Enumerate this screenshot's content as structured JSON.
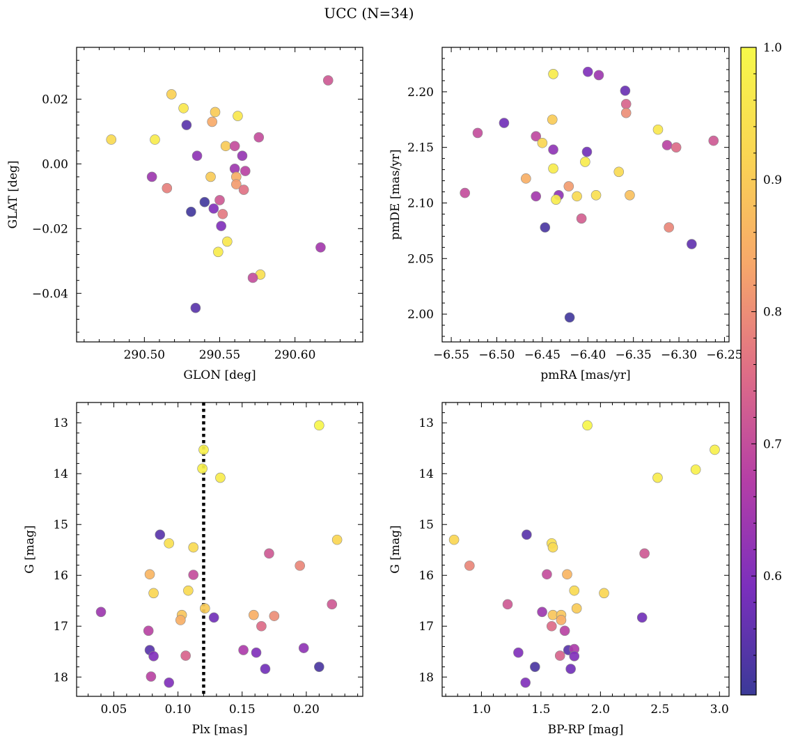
{
  "figure_title": "UCC (N=34)",
  "colorbar": {
    "min": 0.51,
    "max": 1.0,
    "ticks": [
      0.6,
      0.7,
      0.8,
      0.9,
      1.0
    ],
    "tick_labels": [
      "0.6",
      "0.7",
      "0.8",
      "0.9",
      "1.0"
    ],
    "colormap": "plasma",
    "stops": [
      "#3b3a98",
      "#7b2fbd",
      "#b53fa6",
      "#df6e86",
      "#f7a86a",
      "#fad553",
      "#f6f94a"
    ]
  },
  "marker_edge_color": "#888888",
  "chart_data": [
    {
      "type": "scatter",
      "xlabel": "GLON [deg]",
      "ylabel": "GLAT [deg]",
      "xlim": [
        290.455,
        290.645
      ],
      "ylim": [
        -0.055,
        0.036
      ],
      "xticks": [
        290.5,
        290.55,
        290.6
      ],
      "xtick_labels": [
        "290.50",
        "290.55",
        "290.60"
      ],
      "yticks": [
        -0.04,
        -0.02,
        0.0,
        0.02
      ],
      "ytick_labels": [
        "−0.04",
        "−0.02",
        "0.00",
        "0.02"
      ],
      "invert_y": false,
      "points": [
        [
          290.478,
          0.0075,
          0.93
        ],
        [
          290.518,
          0.0215,
          0.91
        ],
        [
          290.526,
          0.0172,
          0.96
        ],
        [
          290.528,
          0.012,
          0.55
        ],
        [
          290.547,
          0.016,
          0.9
        ],
        [
          290.562,
          0.0148,
          0.96
        ],
        [
          290.622,
          0.0258,
          0.72
        ],
        [
          290.507,
          0.0075,
          0.97
        ],
        [
          290.545,
          0.013,
          0.84
        ],
        [
          290.554,
          0.0055,
          0.9
        ],
        [
          290.56,
          0.0055,
          0.7
        ],
        [
          290.576,
          0.0082,
          0.7
        ],
        [
          290.535,
          0.0025,
          0.62
        ],
        [
          290.565,
          0.0025,
          0.63
        ],
        [
          290.505,
          -0.004,
          0.64
        ],
        [
          290.544,
          -0.004,
          0.9
        ],
        [
          290.56,
          -0.0015,
          0.64
        ],
        [
          290.567,
          -0.0022,
          0.68
        ],
        [
          290.561,
          -0.004,
          0.85
        ],
        [
          290.515,
          -0.0075,
          0.78
        ],
        [
          290.561,
          -0.0063,
          0.82
        ],
        [
          290.566,
          -0.008,
          0.76
        ],
        [
          290.54,
          -0.0118,
          0.52
        ],
        [
          290.55,
          -0.0112,
          0.72
        ],
        [
          290.531,
          -0.0148,
          0.52
        ],
        [
          290.546,
          -0.0138,
          0.6
        ],
        [
          290.552,
          -0.0155,
          0.77
        ],
        [
          290.551,
          -0.0192,
          0.6
        ],
        [
          290.555,
          -0.024,
          0.96
        ],
        [
          290.549,
          -0.0272,
          0.97
        ],
        [
          290.617,
          -0.0258,
          0.65
        ],
        [
          290.577,
          -0.0342,
          0.94
        ],
        [
          290.572,
          -0.0352,
          0.7
        ],
        [
          290.534,
          -0.0445,
          0.55
        ]
      ]
    },
    {
      "type": "scatter",
      "xlabel": "pmRA [mas/yr]",
      "ylabel": "pmDE [mas/yr]",
      "xlim": [
        -6.56,
        -6.245
      ],
      "ylim": [
        1.975,
        2.24
      ],
      "xticks": [
        -6.55,
        -6.5,
        -6.45,
        -6.4,
        -6.35,
        -6.3,
        -6.25
      ],
      "xtick_labels": [
        "−6.55",
        "−6.50",
        "−6.45",
        "−6.40",
        "−6.35",
        "−6.30",
        "−6.25"
      ],
      "yticks": [
        2.0,
        2.05,
        2.1,
        2.15,
        2.2
      ],
      "ytick_labels": [
        "2.00",
        "2.05",
        "2.10",
        "2.15",
        "2.20"
      ],
      "invert_y": false,
      "points": [
        [
          -6.438,
          2.216,
          0.97
        ],
        [
          -6.4,
          2.218,
          0.6
        ],
        [
          -6.388,
          2.215,
          0.64
        ],
        [
          -6.359,
          2.201,
          0.57
        ],
        [
          -6.358,
          2.189,
          0.74
        ],
        [
          -6.358,
          2.181,
          0.8
        ],
        [
          -6.439,
          2.175,
          0.9
        ],
        [
          -6.492,
          2.172,
          0.58
        ],
        [
          -6.521,
          2.163,
          0.7
        ],
        [
          -6.323,
          2.166,
          0.96
        ],
        [
          -6.457,
          2.16,
          0.69
        ],
        [
          -6.45,
          2.154,
          0.92
        ],
        [
          -6.438,
          2.148,
          0.62
        ],
        [
          -6.401,
          2.146,
          0.58
        ],
        [
          -6.313,
          2.152,
          0.68
        ],
        [
          -6.303,
          2.15,
          0.75
        ],
        [
          -6.262,
          2.156,
          0.72
        ],
        [
          -6.403,
          2.137,
          0.97
        ],
        [
          -6.438,
          2.131,
          0.97
        ],
        [
          -6.366,
          2.128,
          0.93
        ],
        [
          -6.468,
          2.122,
          0.85
        ],
        [
          -6.421,
          2.115,
          0.82
        ],
        [
          -6.535,
          2.109,
          0.7
        ],
        [
          -6.457,
          2.106,
          0.65
        ],
        [
          -6.432,
          2.107,
          0.62
        ],
        [
          -6.412,
          2.106,
          0.93
        ],
        [
          -6.391,
          2.107,
          0.94
        ],
        [
          -6.354,
          2.107,
          0.88
        ],
        [
          -6.435,
          2.103,
          0.97
        ],
        [
          -6.407,
          2.086,
          0.73
        ],
        [
          -6.447,
          2.078,
          0.53
        ],
        [
          -6.311,
          2.078,
          0.79
        ],
        [
          -6.286,
          2.063,
          0.56
        ],
        [
          -6.42,
          1.997,
          0.52
        ]
      ]
    },
    {
      "type": "scatter",
      "xlabel": "Plx [mas]",
      "ylabel": "G [mag]",
      "xlim": [
        0.021,
        0.244
      ],
      "ylim": [
        12.6,
        18.38
      ],
      "xticks": [
        0.05,
        0.1,
        0.15,
        0.2
      ],
      "xtick_labels": [
        "0.05",
        "0.10",
        "0.15",
        "0.20"
      ],
      "yticks": [
        13,
        14,
        15,
        16,
        17,
        18
      ],
      "ytick_labels": [
        "13",
        "14",
        "15",
        "16",
        "17",
        "18"
      ],
      "invert_y": true,
      "vline": 0.12,
      "points": [
        [
          0.21,
          13.05,
          0.99
        ],
        [
          0.12,
          13.53,
          0.98
        ],
        [
          0.119,
          13.9,
          0.98
        ],
        [
          0.133,
          14.08,
          0.97
        ],
        [
          0.086,
          15.2,
          0.55
        ],
        [
          0.093,
          15.37,
          0.94
        ],
        [
          0.224,
          15.3,
          0.92
        ],
        [
          0.112,
          15.45,
          0.93
        ],
        [
          0.171,
          15.57,
          0.72
        ],
        [
          0.195,
          15.81,
          0.79
        ],
        [
          0.078,
          15.98,
          0.86
        ],
        [
          0.112,
          15.99,
          0.7
        ],
        [
          0.108,
          16.3,
          0.93
        ],
        [
          0.081,
          16.35,
          0.92
        ],
        [
          0.22,
          16.57,
          0.72
        ],
        [
          0.121,
          16.65,
          0.9
        ],
        [
          0.04,
          16.72,
          0.64
        ],
        [
          0.103,
          16.78,
          0.89
        ],
        [
          0.128,
          16.83,
          0.58
        ],
        [
          0.159,
          16.78,
          0.85
        ],
        [
          0.175,
          16.8,
          0.8
        ],
        [
          0.102,
          16.88,
          0.85
        ],
        [
          0.165,
          17.0,
          0.75
        ],
        [
          0.077,
          17.09,
          0.68
        ],
        [
          0.078,
          17.47,
          0.55
        ],
        [
          0.151,
          17.47,
          0.66
        ],
        [
          0.161,
          17.52,
          0.6
        ],
        [
          0.198,
          17.43,
          0.62
        ],
        [
          0.081,
          17.59,
          0.6
        ],
        [
          0.106,
          17.58,
          0.74
        ],
        [
          0.168,
          17.84,
          0.58
        ],
        [
          0.21,
          17.8,
          0.53
        ],
        [
          0.079,
          17.99,
          0.68
        ],
        [
          0.093,
          18.11,
          0.6
        ]
      ]
    },
    {
      "type": "scatter",
      "xlabel": "BP-RP [mag]",
      "ylabel": "G [mag]",
      "xlim": [
        0.67,
        3.08
      ],
      "ylim": [
        12.6,
        18.38
      ],
      "xticks": [
        1.0,
        1.5,
        2.0,
        2.5,
        3.0
      ],
      "xtick_labels": [
        "1.0",
        "1.5",
        "2.0",
        "2.5",
        "3.0"
      ],
      "yticks": [
        13,
        14,
        15,
        16,
        17,
        18
      ],
      "ytick_labels": [
        "13",
        "14",
        "15",
        "16",
        "17",
        "18"
      ],
      "invert_y": true,
      "points": [
        [
          1.89,
          13.05,
          0.99
        ],
        [
          2.96,
          13.53,
          0.98
        ],
        [
          2.8,
          13.92,
          0.98
        ],
        [
          2.48,
          14.08,
          0.97
        ],
        [
          1.38,
          15.2,
          0.55
        ],
        [
          0.77,
          15.3,
          0.92
        ],
        [
          1.59,
          15.37,
          0.94
        ],
        [
          1.6,
          15.45,
          0.93
        ],
        [
          2.37,
          15.57,
          0.72
        ],
        [
          0.9,
          15.81,
          0.79
        ],
        [
          1.55,
          15.98,
          0.7
        ],
        [
          1.72,
          15.98,
          0.86
        ],
        [
          1.78,
          16.3,
          0.93
        ],
        [
          2.03,
          16.35,
          0.92
        ],
        [
          1.22,
          16.57,
          0.72
        ],
        [
          1.8,
          16.65,
          0.9
        ],
        [
          1.51,
          16.72,
          0.64
        ],
        [
          1.6,
          16.78,
          0.89
        ],
        [
          1.67,
          16.78,
          0.89
        ],
        [
          2.35,
          16.83,
          0.58
        ],
        [
          1.67,
          16.88,
          0.85
        ],
        [
          1.59,
          17.0,
          0.75
        ],
        [
          1.7,
          17.09,
          0.68
        ],
        [
          1.73,
          17.47,
          0.55
        ],
        [
          1.78,
          17.45,
          0.66
        ],
        [
          1.31,
          17.52,
          0.6
        ],
        [
          1.66,
          17.58,
          0.74
        ],
        [
          1.78,
          17.59,
          0.6
        ],
        [
          1.75,
          17.84,
          0.58
        ],
        [
          1.45,
          17.8,
          0.53
        ],
        [
          1.37,
          18.11,
          0.6
        ]
      ]
    }
  ]
}
